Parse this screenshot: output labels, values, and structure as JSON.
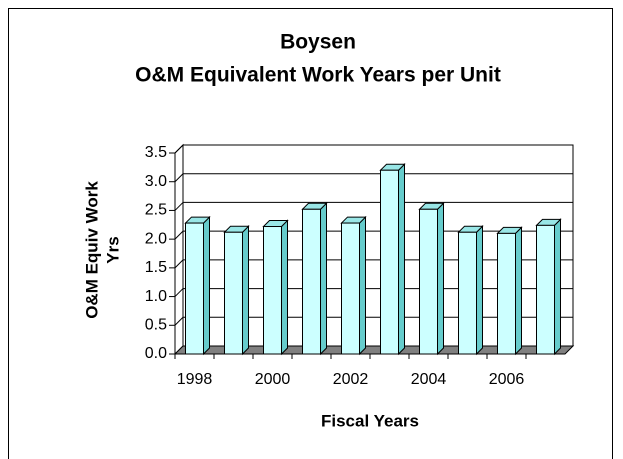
{
  "chart_data": {
    "type": "bar3d",
    "title": "Boysen",
    "subtitle": "O&M Equivalent Work Years per Unit",
    "xlabel": "Fiscal Years",
    "ylabel": [
      "O&M Equiv Work",
      "Yrs"
    ],
    "categories": [
      1998,
      null,
      2000,
      null,
      2002,
      null,
      2004,
      null,
      2006,
      null
    ],
    "values": [
      2.28,
      2.12,
      2.22,
      2.52,
      2.28,
      3.2,
      2.52,
      2.12,
      2.1,
      2.24
    ],
    "color": "#ccffff",
    "ylim": [
      0,
      3.5
    ],
    "yticks": [
      {
        "value": 0,
        "label": "0.0"
      },
      0.5,
      {
        "value": 1,
        "label": "1.0"
      },
      1.5,
      {
        "value": 2,
        "label": "2.0"
      },
      2.5,
      {
        "value": 3,
        "label": "3.0"
      },
      3.5
    ],
    "grid": true
  }
}
